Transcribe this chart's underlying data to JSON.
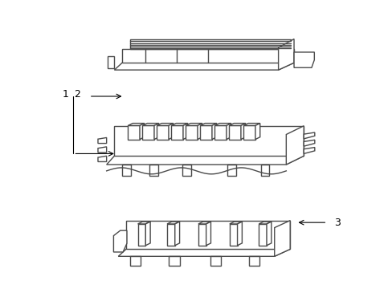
{
  "background_color": "#ffffff",
  "line_color": "#4a4a4a",
  "line_width": 1.0,
  "label_color": "#000000",
  "label_fontsize": 9
}
